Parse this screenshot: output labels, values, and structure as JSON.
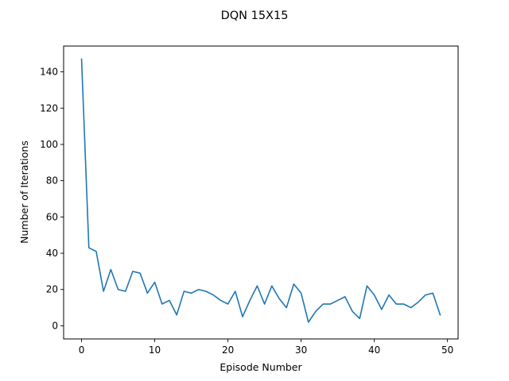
{
  "chart_data": {
    "type": "line",
    "title": "DQN 15X15",
    "xlabel": "Episode Number",
    "ylabel": "Number of Iterations",
    "xlim": [
      -2.45,
      51.45
    ],
    "ylim": [
      -7.25,
      154.25
    ],
    "xticks": [
      0,
      10,
      20,
      30,
      40,
      50
    ],
    "yticks": [
      0,
      20,
      40,
      60,
      80,
      100,
      120,
      140
    ],
    "grid": false,
    "legend": "none",
    "series": [
      {
        "color": "#1f77b4",
        "x": [
          0,
          1,
          2,
          3,
          4,
          5,
          6,
          7,
          8,
          9,
          10,
          11,
          12,
          13,
          14,
          15,
          16,
          17,
          18,
          19,
          20,
          21,
          22,
          23,
          24,
          25,
          26,
          27,
          28,
          29,
          30,
          31,
          32,
          33,
          34,
          35,
          36,
          37,
          38,
          39,
          40,
          41,
          42,
          43,
          44,
          45,
          46,
          47,
          48,
          49
        ],
        "y": [
          147,
          43,
          41,
          19,
          31,
          20,
          19,
          30,
          29,
          18,
          24,
          12,
          14,
          6,
          19,
          18,
          20,
          19,
          17,
          14,
          12,
          19,
          5,
          14,
          22,
          12,
          22,
          15,
          10,
          23,
          18,
          2,
          8,
          12,
          12,
          14,
          16,
          8,
          4,
          22,
          17,
          9,
          17,
          12,
          12,
          10,
          13,
          17,
          18,
          6
        ]
      }
    ]
  }
}
